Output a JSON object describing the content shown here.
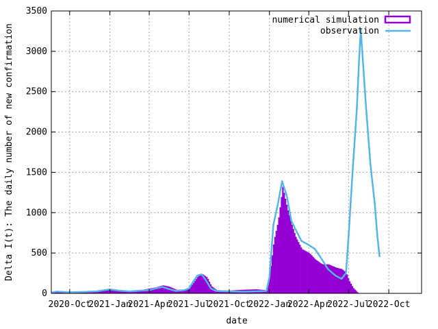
{
  "chart_data": {
    "type": "bar+line",
    "xlabel": "date",
    "ylabel": "Delta I(t): The daily number of new confirmation",
    "ylim": [
      0,
      3500
    ],
    "xlim": [
      "2020-08-20",
      "2022-12-15"
    ],
    "yticks": [
      0,
      500,
      1000,
      1500,
      2000,
      2500,
      3000,
      3500
    ],
    "xticks": [
      {
        "date": "2020-10-01",
        "label": "2020-Oct"
      },
      {
        "date": "2021-01-01",
        "label": "2021-Jan"
      },
      {
        "date": "2021-04-01",
        "label": "2021-Apr"
      },
      {
        "date": "2021-07-01",
        "label": "2021-Jul"
      },
      {
        "date": "2021-10-01",
        "label": "2021-Oct"
      },
      {
        "date": "2022-01-01",
        "label": "2022-Jan"
      },
      {
        "date": "2022-04-01",
        "label": "2022-Apr"
      },
      {
        "date": "2022-07-01",
        "label": "2022-Jul"
      },
      {
        "date": "2022-10-01",
        "label": "2022-Oct"
      }
    ],
    "grid": true,
    "legend_position": "top-right",
    "series": [
      {
        "name": "numerical simulation",
        "style": "bar",
        "color": "#9400d3",
        "points": [
          [
            "2020-08-20",
            15
          ],
          [
            "2020-09-01",
            20
          ],
          [
            "2020-10-01",
            18
          ],
          [
            "2020-11-01",
            22
          ],
          [
            "2020-12-01",
            30
          ],
          [
            "2021-01-01",
            40
          ],
          [
            "2021-01-20",
            38
          ],
          [
            "2021-02-15",
            32
          ],
          [
            "2021-03-15",
            45
          ],
          [
            "2021-04-01",
            60
          ],
          [
            "2021-04-15",
            75
          ],
          [
            "2021-05-01",
            100
          ],
          [
            "2021-05-15",
            85
          ],
          [
            "2021-06-01",
            45
          ],
          [
            "2021-06-20",
            45
          ],
          [
            "2021-07-01",
            70
          ],
          [
            "2021-07-10",
            130
          ],
          [
            "2021-07-20",
            210
          ],
          [
            "2021-07-30",
            240
          ],
          [
            "2021-08-10",
            200
          ],
          [
            "2021-08-20",
            90
          ],
          [
            "2021-09-01",
            40
          ],
          [
            "2021-10-01",
            35
          ],
          [
            "2021-11-01",
            45
          ],
          [
            "2021-12-01",
            50
          ],
          [
            "2021-12-25",
            40
          ],
          [
            "2022-01-01",
            250
          ],
          [
            "2022-01-10",
            650
          ],
          [
            "2022-01-20",
            900
          ],
          [
            "2022-01-30",
            1320
          ],
          [
            "2022-02-10",
            1050
          ],
          [
            "2022-02-20",
            850
          ],
          [
            "2022-03-01",
            700
          ],
          [
            "2022-03-15",
            550
          ],
          [
            "2022-04-01",
            500
          ],
          [
            "2022-04-15",
            420
          ],
          [
            "2022-05-01",
            360
          ],
          [
            "2022-05-15",
            360
          ],
          [
            "2022-06-01",
            320
          ],
          [
            "2022-06-15",
            300
          ],
          [
            "2022-06-25",
            250
          ],
          [
            "2022-07-01",
            160
          ],
          [
            "2022-07-10",
            70
          ],
          [
            "2022-07-20",
            15
          ]
        ]
      },
      {
        "name": "observation",
        "style": "line",
        "color": "#56b4e9",
        "points": [
          [
            "2020-08-20",
            10
          ],
          [
            "2020-09-01",
            22
          ],
          [
            "2020-10-01",
            14
          ],
          [
            "2020-11-01",
            18
          ],
          [
            "2020-12-01",
            25
          ],
          [
            "2021-01-01",
            50
          ],
          [
            "2021-01-20",
            35
          ],
          [
            "2021-02-15",
            25
          ],
          [
            "2021-03-15",
            35
          ],
          [
            "2021-04-01",
            40
          ],
          [
            "2021-04-15",
            60
          ],
          [
            "2021-05-01",
            80
          ],
          [
            "2021-05-15",
            55
          ],
          [
            "2021-06-01",
            30
          ],
          [
            "2021-06-20",
            40
          ],
          [
            "2021-07-01",
            60
          ],
          [
            "2021-07-10",
            140
          ],
          [
            "2021-07-20",
            220
          ],
          [
            "2021-07-30",
            235
          ],
          [
            "2021-08-10",
            150
          ],
          [
            "2021-08-20",
            60
          ],
          [
            "2021-09-01",
            30
          ],
          [
            "2021-10-01",
            25
          ],
          [
            "2021-11-01",
            20
          ],
          [
            "2021-12-01",
            25
          ],
          [
            "2021-12-25",
            30
          ],
          [
            "2022-01-01",
            200
          ],
          [
            "2022-01-10",
            850
          ],
          [
            "2022-01-20",
            1100
          ],
          [
            "2022-01-30",
            1390
          ],
          [
            "2022-02-10",
            1200
          ],
          [
            "2022-02-20",
            900
          ],
          [
            "2022-03-01",
            800
          ],
          [
            "2022-03-15",
            650
          ],
          [
            "2022-04-01",
            600
          ],
          [
            "2022-04-15",
            550
          ],
          [
            "2022-05-01",
            420
          ],
          [
            "2022-05-15",
            300
          ],
          [
            "2022-06-01",
            220
          ],
          [
            "2022-06-15",
            180
          ],
          [
            "2022-06-25",
            250
          ],
          [
            "2022-07-01",
            700
          ],
          [
            "2022-07-10",
            1500
          ],
          [
            "2022-07-20",
            2300
          ],
          [
            "2022-07-25",
            2900
          ],
          [
            "2022-07-29",
            3270
          ],
          [
            "2022-08-05",
            2700
          ],
          [
            "2022-08-10",
            2300
          ],
          [
            "2022-08-20",
            1600
          ],
          [
            "2022-08-30",
            1100
          ],
          [
            "2022-09-05",
            700
          ],
          [
            "2022-09-10",
            450
          ]
        ]
      }
    ]
  }
}
